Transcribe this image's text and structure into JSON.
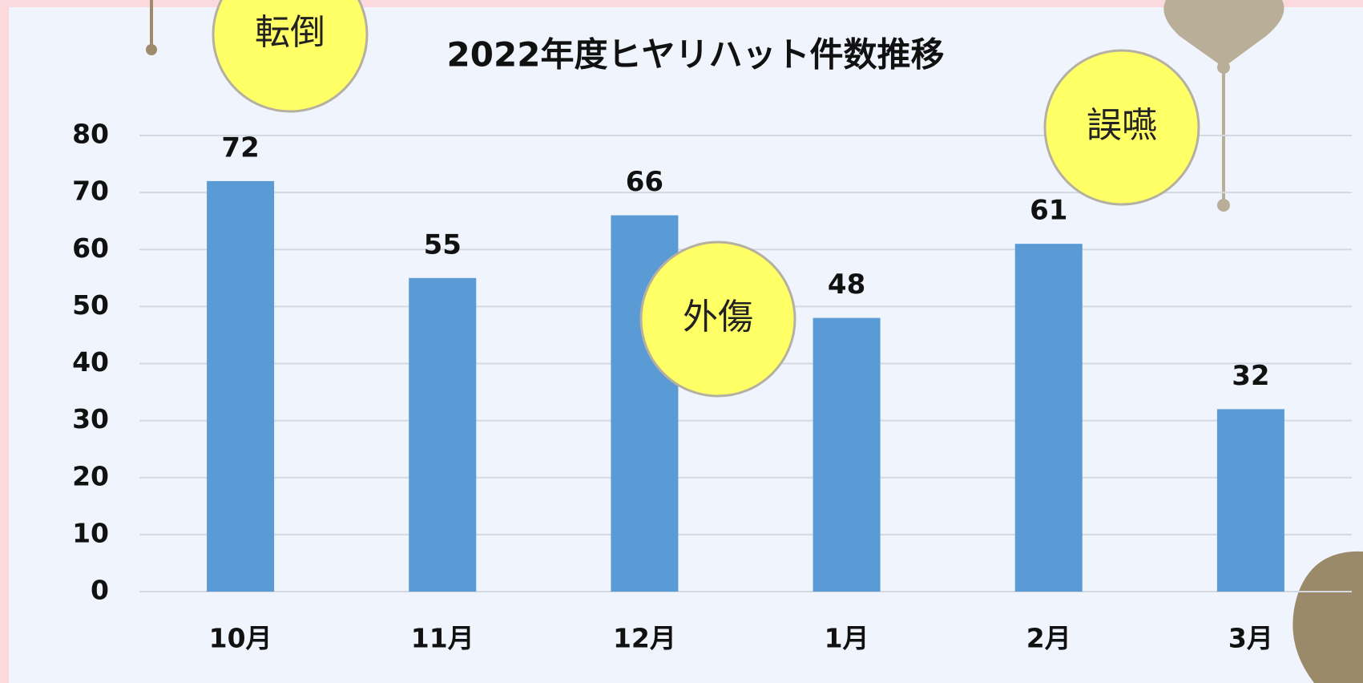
{
  "chart_data": {
    "type": "bar",
    "title": "2022年度ヒヤリハット件数推移",
    "categories": [
      "10月",
      "11月",
      "12月",
      "1月",
      "2月",
      "3月"
    ],
    "values": [
      72,
      55,
      66,
      48,
      61,
      32
    ],
    "color": "#5b9bd5",
    "ylim": [
      0,
      80
    ],
    "yticks": [
      0,
      10,
      20,
      30,
      40,
      50,
      60,
      70,
      80
    ],
    "grid": true,
    "annotations": [
      "転倒",
      "外傷",
      "誤嚥"
    ]
  }
}
